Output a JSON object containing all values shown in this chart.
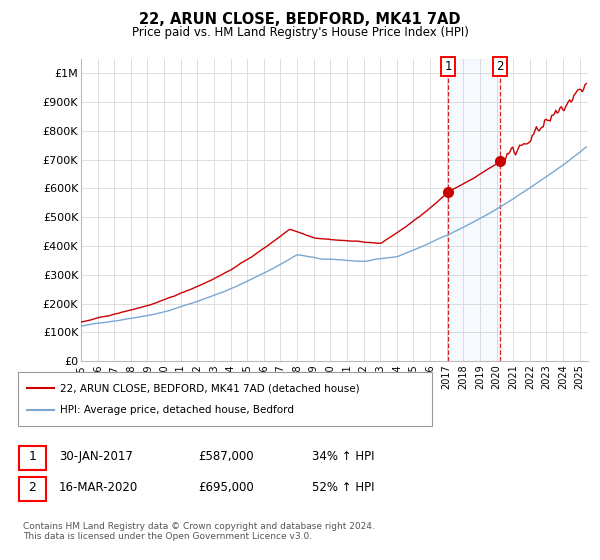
{
  "title": "22, ARUN CLOSE, BEDFORD, MK41 7AD",
  "subtitle": "Price paid vs. HM Land Registry's House Price Index (HPI)",
  "ylabel_ticks": [
    "£0",
    "£100K",
    "£200K",
    "£300K",
    "£400K",
    "£500K",
    "£600K",
    "£700K",
    "£800K",
    "£900K",
    "£1M"
  ],
  "ytick_values": [
    0,
    100000,
    200000,
    300000,
    400000,
    500000,
    600000,
    700000,
    800000,
    900000,
    1000000
  ],
  "ylim": [
    0,
    1050000
  ],
  "xlim_start": 1995.0,
  "xlim_end": 2025.5,
  "red_line_color": "#cc0000",
  "blue_line_color": "#7aa8d2",
  "marker1_x": 2017.08,
  "marker1_y": 587000,
  "marker2_x": 2020.21,
  "marker2_y": 695000,
  "legend_label1": "22, ARUN CLOSE, BEDFORD, MK41 7AD (detached house)",
  "legend_label2": "HPI: Average price, detached house, Bedford",
  "row1_num": "1",
  "row1_text": "30-JAN-2017",
  "row1_price": "£587,000",
  "row1_hpi": "34% ↑ HPI",
  "row2_num": "2",
  "row2_text": "16-MAR-2020",
  "row2_price": "£695,000",
  "row2_hpi": "52% ↑ HPI",
  "footnote": "Contains HM Land Registry data © Crown copyright and database right 2024.\nThis data is licensed under the Open Government Licence v3.0.",
  "background_color": "#ffffff",
  "grid_color": "#dddddd",
  "xtick_years": [
    1995,
    1996,
    1997,
    1998,
    1999,
    2000,
    2001,
    2002,
    2003,
    2004,
    2005,
    2006,
    2007,
    2008,
    2009,
    2010,
    2011,
    2012,
    2013,
    2014,
    2015,
    2016,
    2017,
    2018,
    2019,
    2020,
    2021,
    2022,
    2023,
    2024,
    2025
  ]
}
